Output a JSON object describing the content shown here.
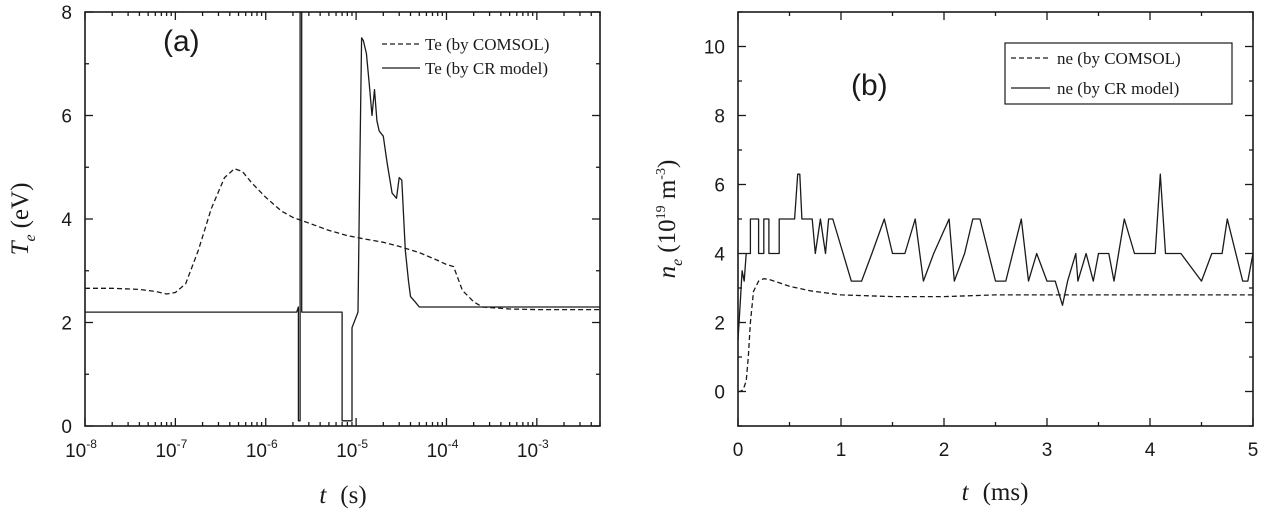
{
  "chart_data": [
    {
      "type": "line",
      "panel_label": "(a)",
      "xlabel_var": "t",
      "xlabel_unit": "(s)",
      "ylabel_var": "T",
      "ylabel_sub": "e",
      "ylabel_unit": "(eV)",
      "xscale": "log",
      "xlim": [
        1e-08,
        0.005
      ],
      "ylim": [
        0,
        8
      ],
      "x_tick_labels": [
        {
          "value": 1e-08,
          "base": "10",
          "exp": "-8"
        },
        {
          "value": 1e-07,
          "base": "10",
          "exp": "-7"
        },
        {
          "value": 1e-06,
          "base": "10",
          "exp": "-6"
        },
        {
          "value": 1e-05,
          "base": "10",
          "exp": "-5"
        },
        {
          "value": 0.0001,
          "base": "10",
          "exp": "-4"
        },
        {
          "value": 0.001,
          "base": "10",
          "exp": "-3"
        }
      ],
      "y_ticks": [
        0,
        2,
        4,
        6,
        8
      ],
      "legend_position": "top-right",
      "series": [
        {
          "name": "Te (by COMSOL)",
          "style": "dashed",
          "x": [
            1e-08,
            2e-08,
            4e-08,
            6e-08,
            8e-08,
            1e-07,
            1.3e-07,
            1.8e-07,
            2.5e-07,
            3.5e-07,
            4.5e-07,
            5.5e-07,
            7e-07,
            1e-06,
            1.5e-06,
            2e-06,
            3e-06,
            5e-06,
            8e-06,
            1.2e-05,
            2e-05,
            3e-05,
            5e-05,
            8e-05,
            0.0001,
            0.00012,
            0.00015,
            0.0002,
            0.00025,
            0.0005,
            0.001,
            0.005
          ],
          "y": [
            2.66,
            2.66,
            2.64,
            2.6,
            2.55,
            2.58,
            2.75,
            3.4,
            4.2,
            4.8,
            4.97,
            4.92,
            4.7,
            4.42,
            4.15,
            4.03,
            3.92,
            3.78,
            3.68,
            3.62,
            3.55,
            3.47,
            3.35,
            3.2,
            3.12,
            3.08,
            2.62,
            2.4,
            2.3,
            2.26,
            2.25,
            2.25
          ]
        },
        {
          "name": "Te (by CR model)",
          "style": "solid",
          "x": [
            1e-08,
            1e-07,
            1e-06,
            2.2e-06,
            2.3e-06,
            2.3e-06,
            2.4e-06,
            2.4e-06,
            2.5e-06,
            2.5e-06,
            2.6e-06,
            7e-06,
            7e-06,
            9e-06,
            9e-06,
            1.05e-05,
            1.1e-05,
            1.15e-05,
            1.2e-05,
            1.3e-05,
            1.4e-05,
            1.5e-05,
            1.6e-05,
            1.7e-05,
            1.8e-05,
            2e-05,
            2.2e-05,
            2.5e-05,
            2.8e-05,
            3e-05,
            3.2e-05,
            3.5e-05,
            3.8e-05,
            4e-05,
            4.5e-05,
            5e-05,
            6e-05,
            0.0001,
            0.001,
            0.005
          ],
          "y": [
            2.2,
            2.2,
            2.2,
            2.2,
            2.3,
            0.1,
            0.1,
            8.0,
            8.0,
            2.2,
            2.2,
            2.2,
            0.1,
            0.1,
            1.9,
            2.2,
            5.0,
            7.5,
            7.45,
            7.2,
            6.6,
            6.0,
            6.5,
            5.9,
            5.7,
            5.6,
            5.1,
            4.5,
            4.4,
            4.8,
            4.75,
            3.4,
            2.8,
            2.5,
            2.4,
            2.3,
            2.3,
            2.3,
            2.3,
            2.3
          ]
        }
      ]
    },
    {
      "type": "line",
      "panel_label": "(b)",
      "xlabel_var": "t",
      "xlabel_unit": "(ms)",
      "ylabel_var": "n",
      "ylabel_sub": "e",
      "ylabel_unit_pre": "(10",
      "ylabel_unit_exp1": "19",
      "ylabel_unit_mid": " m",
      "ylabel_unit_exp2": "-3",
      "ylabel_unit_post": ")",
      "xlim": [
        0,
        5
      ],
      "ylim": [
        -1,
        11
      ],
      "x_ticks": [
        0,
        1,
        2,
        3,
        4,
        5
      ],
      "y_ticks": [
        0,
        2,
        4,
        6,
        8,
        10
      ],
      "legend_position": "top-right",
      "series": [
        {
          "name": "ne (by COMSOL)",
          "style": "dashed",
          "x": [
            0,
            0.02,
            0.05,
            0.08,
            0.1,
            0.12,
            0.15,
            0.2,
            0.25,
            0.3,
            0.4,
            0.5,
            0.7,
            1.0,
            1.5,
            2.0,
            2.5,
            3.0,
            4.0,
            5.0
          ],
          "y": [
            0,
            0,
            0.05,
            0.3,
            1.0,
            2.0,
            2.9,
            3.2,
            3.27,
            3.25,
            3.15,
            3.05,
            2.92,
            2.8,
            2.75,
            2.75,
            2.8,
            2.8,
            2.8,
            2.8
          ]
        },
        {
          "name": "ne (by CR model)",
          "style": "solid",
          "x": [
            0,
            0.02,
            0.04,
            0.06,
            0.08,
            0.1,
            0.12,
            0.12,
            0.2,
            0.2,
            0.25,
            0.25,
            0.3,
            0.3,
            0.4,
            0.4,
            0.55,
            0.58,
            0.6,
            0.62,
            0.72,
            0.75,
            0.8,
            0.85,
            0.88,
            0.92,
            1.02,
            1.1,
            1.2,
            1.3,
            1.42,
            1.5,
            1.62,
            1.72,
            1.8,
            1.9,
            2.05,
            2.1,
            2.2,
            2.28,
            2.35,
            2.5,
            2.6,
            2.75,
            2.82,
            2.9,
            3.0,
            3.08,
            3.15,
            3.2,
            3.28,
            3.3,
            3.38,
            3.45,
            3.5,
            3.6,
            3.65,
            3.75,
            3.85,
            4.05,
            4.1,
            4.15,
            4.2,
            4.3,
            4.5,
            4.6,
            4.7,
            4.75,
            4.9,
            4.95,
            5.0
          ],
          "y": [
            1.5,
            2.5,
            3.5,
            3.2,
            4.0,
            4.0,
            4.0,
            5.0,
            5.0,
            4.0,
            4.0,
            5.0,
            5.0,
            4.0,
            4.0,
            5.0,
            5.0,
            6.3,
            6.3,
            5.0,
            5.0,
            4.0,
            5.0,
            4.0,
            5.0,
            5.0,
            4.0,
            3.2,
            3.2,
            4.0,
            5.0,
            4.0,
            4.0,
            5.0,
            3.2,
            4.0,
            5.0,
            3.2,
            4.0,
            5.0,
            5.0,
            3.2,
            3.2,
            5.0,
            3.2,
            4.0,
            3.2,
            3.2,
            2.5,
            3.2,
            4.0,
            3.2,
            4.0,
            3.2,
            4.0,
            4.0,
            3.2,
            5.0,
            4.0,
            4.0,
            6.3,
            4.0,
            4.0,
            4.0,
            3.2,
            4.0,
            4.0,
            5.0,
            3.2,
            3.2,
            4.0
          ]
        }
      ]
    }
  ]
}
